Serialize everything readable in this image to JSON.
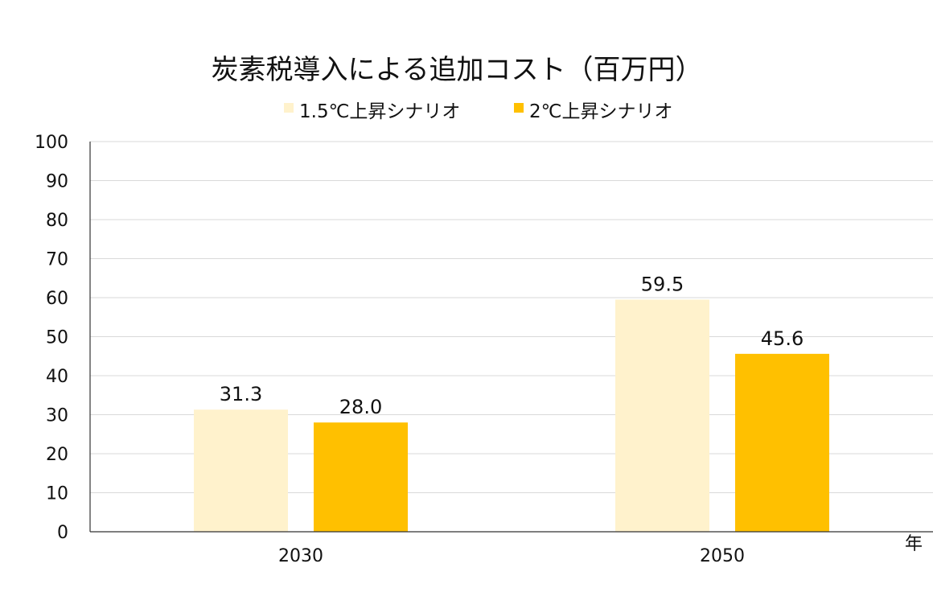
{
  "chart_data": {
    "type": "bar",
    "title": "炭素税導入による追加コスト（百万円）",
    "xlabel": "年",
    "ylabel": "",
    "categories": [
      "2030",
      "2050"
    ],
    "series": [
      {
        "name": "1.5℃上昇シナリオ",
        "values": [
          31.3,
          59.5
        ],
        "labels": [
          "31.3",
          "59.5"
        ],
        "color": "#FFF2CC"
      },
      {
        "name": "2℃上昇シナリオ",
        "values": [
          28.0,
          45.6
        ],
        "labels": [
          "28.0",
          "45.6"
        ],
        "color": "#FFC000"
      }
    ],
    "ylim": [
      0,
      100
    ],
    "yticks": [
      0,
      10,
      20,
      30,
      40,
      50,
      60,
      70,
      80,
      90,
      100
    ],
    "grid": true,
    "legend_position": "top"
  }
}
